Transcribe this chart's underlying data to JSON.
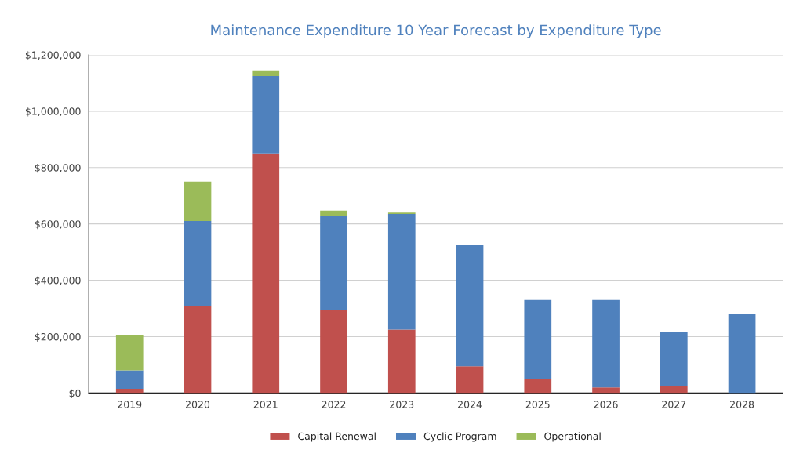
{
  "chart_data": {
    "type": "bar",
    "title": "Maintenance Expenditure 10 Year Forecast by Expenditure Type",
    "categories": [
      "2019",
      "2020",
      "2021",
      "2022",
      "2023",
      "2024",
      "2025",
      "2026",
      "2027",
      "2028"
    ],
    "stacked": true,
    "series": [
      {
        "name": "Capital Renewal",
        "color": "#c0504d",
        "values": [
          15000,
          310000,
          850000,
          295000,
          225000,
          95000,
          50000,
          20000,
          25000,
          null
        ]
      },
      {
        "name": "Cyclic Program",
        "color": "#4f81bd",
        "values": [
          65000,
          300000,
          275000,
          335000,
          410000,
          430000,
          280000,
          310000,
          190000,
          280000
        ]
      },
      {
        "name": "Operational",
        "color": "#9bbb59",
        "values": [
          125000,
          140000,
          20000,
          17000,
          5000,
          null,
          null,
          null,
          null,
          null
        ]
      }
    ],
    "ylim": [
      0,
      1200000
    ],
    "yticks": [
      {
        "value": 0,
        "label": "$0"
      },
      {
        "value": 200000,
        "label": "$200,000"
      },
      {
        "value": 400000,
        "label": "$400,000"
      },
      {
        "value": 600000,
        "label": "$600,000"
      },
      {
        "value": 800000,
        "label": "$800,000"
      },
      {
        "value": 1000000,
        "label": "$1,000,000"
      },
      {
        "value": 1200000,
        "label": "$1,200,000"
      }
    ],
    "grid": "y",
    "legend": "bottom"
  }
}
